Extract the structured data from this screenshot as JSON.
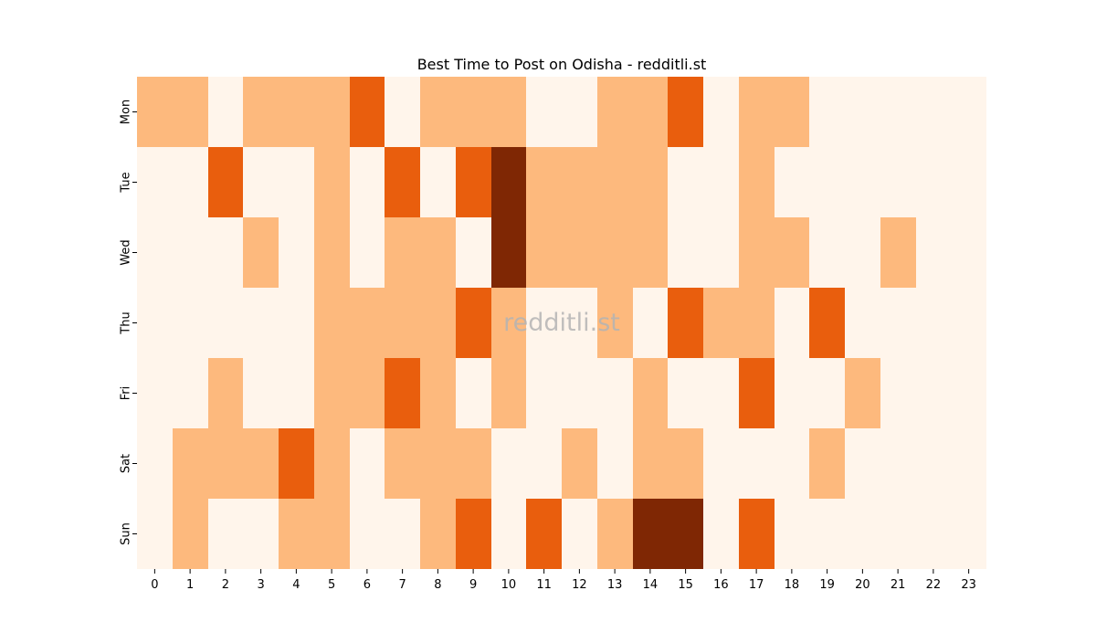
{
  "chart_data": {
    "type": "heatmap",
    "title": "Best Time to Post on Odisha - redditli.st",
    "watermark": "redditli.st",
    "xlabel": "",
    "ylabel": "",
    "x_categories": [
      "0",
      "1",
      "2",
      "3",
      "4",
      "5",
      "6",
      "7",
      "8",
      "9",
      "10",
      "11",
      "12",
      "13",
      "14",
      "15",
      "16",
      "17",
      "18",
      "19",
      "20",
      "21",
      "22",
      "23"
    ],
    "y_categories": [
      "Mon",
      "Tue",
      "Wed",
      "Thu",
      "Fri",
      "Sat",
      "Sun"
    ],
    "level_scale": [
      0,
      1,
      2,
      3
    ],
    "level_colors": [
      "#fff5eb",
      "#fdb97d",
      "#e95e0d",
      "#7f2704"
    ],
    "values": [
      [
        1,
        1,
        0,
        1,
        1,
        1,
        2,
        0,
        1,
        1,
        1,
        0,
        0,
        1,
        1,
        2,
        0,
        1,
        1,
        0,
        0,
        0,
        0,
        0
      ],
      [
        0,
        0,
        2,
        0,
        0,
        1,
        0,
        2,
        0,
        2,
        3,
        1,
        1,
        1,
        1,
        0,
        0,
        1,
        0,
        0,
        0,
        0,
        0,
        0
      ],
      [
        0,
        0,
        0,
        1,
        0,
        1,
        0,
        1,
        1,
        0,
        3,
        1,
        1,
        1,
        1,
        0,
        0,
        1,
        1,
        0,
        0,
        1,
        0,
        0
      ],
      [
        0,
        0,
        0,
        0,
        0,
        1,
        1,
        1,
        1,
        2,
        1,
        0,
        0,
        1,
        0,
        2,
        1,
        1,
        0,
        2,
        0,
        0,
        0,
        0
      ],
      [
        0,
        0,
        1,
        0,
        0,
        1,
        1,
        2,
        1,
        0,
        1,
        0,
        0,
        0,
        1,
        0,
        0,
        2,
        0,
        0,
        1,
        0,
        0,
        0
      ],
      [
        0,
        1,
        1,
        1,
        2,
        1,
        0,
        1,
        1,
        1,
        0,
        0,
        1,
        0,
        1,
        1,
        0,
        0,
        0,
        1,
        0,
        0,
        0,
        0
      ],
      [
        0,
        1,
        0,
        0,
        1,
        1,
        0,
        0,
        1,
        2,
        0,
        2,
        0,
        1,
        3,
        3,
        0,
        2,
        0,
        0,
        0,
        0,
        0,
        0
      ]
    ],
    "colorbar": false,
    "grid": false
  }
}
